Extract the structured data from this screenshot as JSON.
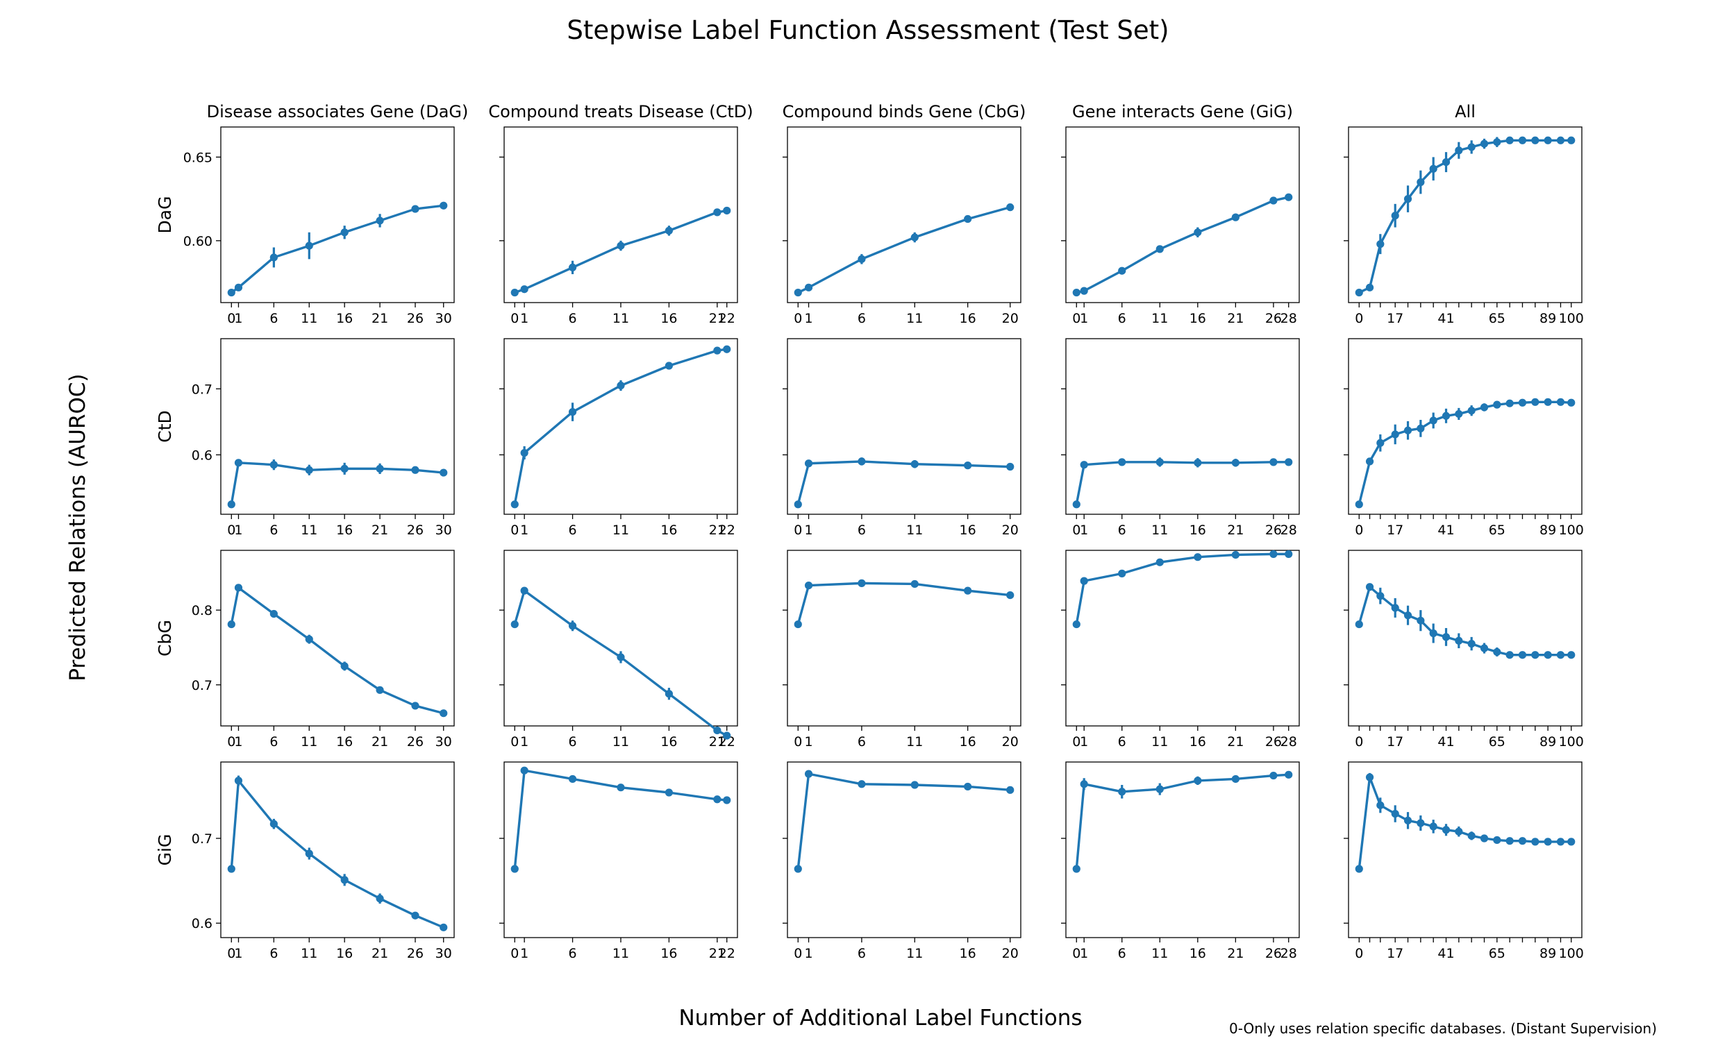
{
  "title": "Stepwise Label Function Assessment (Test Set)",
  "ylabel": "Predicted Relations (AUROC)",
  "xlabel": "Number of Additional Label Functions",
  "footnote": "0-Only uses relation specific databases. (Distant Supervision)",
  "colors": {
    "series": "#1f77b4",
    "axes": "#000000"
  },
  "chart_data": {
    "type": "line",
    "layout": "grid 4 rows x 5 columns, shared y-axis per row",
    "columns": [
      {
        "title": "Disease associates Gene (DaG)",
        "x": [
          0,
          1,
          6,
          11,
          16,
          21,
          26,
          30
        ]
      },
      {
        "title": "Compound treats Disease (CtD)",
        "x": [
          0,
          1,
          6,
          11,
          16,
          21,
          22
        ]
      },
      {
        "title": "Compound binds Gene (CbG)",
        "x": [
          0,
          1,
          6,
          11,
          16,
          20
        ]
      },
      {
        "title": "Gene interacts Gene (GiG)",
        "x": [
          0,
          1,
          6,
          11,
          16,
          21,
          26,
          28
        ]
      },
      {
        "title": "All",
        "x": [
          0,
          5,
          10,
          17,
          23,
          29,
          35,
          41,
          47,
          53,
          59,
          65,
          71,
          77,
          83,
          89,
          95,
          100
        ],
        "xticks": [
          0,
          17,
          41,
          65,
          89,
          100
        ]
      }
    ],
    "rows": [
      {
        "label": "DaG",
        "ylim": [
          0.563,
          0.668
        ],
        "yticks": [
          0.6,
          0.65
        ],
        "ytick_labels": [
          "0.60",
          "0.65"
        ],
        "values": [
          [
            0.569,
            0.572,
            0.59,
            0.597,
            0.605,
            0.612,
            0.619,
            0.621
          ],
          [
            0.569,
            0.571,
            0.584,
            0.597,
            0.606,
            0.617,
            0.618
          ],
          [
            0.569,
            0.572,
            0.589,
            0.602,
            0.613,
            0.62
          ],
          [
            0.569,
            0.57,
            0.582,
            0.595,
            0.605,
            0.614,
            0.624,
            0.626
          ],
          [
            0.569,
            0.572,
            0.598,
            0.615,
            0.625,
            0.635,
            0.643,
            0.647,
            0.654,
            0.656,
            0.658,
            0.659,
            0.66,
            0.66,
            0.66,
            0.66,
            0.66,
            0.66
          ]
        ],
        "errors": [
          [
            0.001,
            0.002,
            0.006,
            0.008,
            0.004,
            0.004,
            0.002,
            0.001
          ],
          [
            0.001,
            0.001,
            0.004,
            0.003,
            0.003,
            0.002,
            0.001
          ],
          [
            0.001,
            0.001,
            0.003,
            0.003,
            0.002,
            0.002
          ],
          [
            0.001,
            0.001,
            0.002,
            0.002,
            0.003,
            0.002,
            0.001,
            0.001
          ],
          [
            0.001,
            0.002,
            0.006,
            0.007,
            0.008,
            0.007,
            0.007,
            0.006,
            0.005,
            0.004,
            0.003,
            0.003,
            0.002,
            0.002,
            0.001,
            0.001,
            0.001,
            0.001
          ]
        ]
      },
      {
        "label": "CtD",
        "ylim": [
          0.51,
          0.776
        ],
        "yticks": [
          0.6,
          0.7
        ],
        "ytick_labels": [
          "0.6",
          "0.7"
        ],
        "values": [
          [
            0.525,
            0.588,
            0.585,
            0.577,
            0.579,
            0.579,
            0.577,
            0.573
          ],
          [
            0.525,
            0.603,
            0.665,
            0.705,
            0.735,
            0.758,
            0.76
          ],
          [
            0.525,
            0.587,
            0.59,
            0.586,
            0.584,
            0.582
          ],
          [
            0.525,
            0.585,
            0.589,
            0.589,
            0.588,
            0.588,
            0.589,
            0.589
          ],
          [
            0.525,
            0.59,
            0.618,
            0.631,
            0.637,
            0.64,
            0.652,
            0.659,
            0.662,
            0.667,
            0.672,
            0.676,
            0.678,
            0.679,
            0.68,
            0.68,
            0.68,
            0.679
          ]
        ],
        "errors": [
          [
            0.002,
            0.003,
            0.008,
            0.008,
            0.009,
            0.008,
            0.005,
            0.004
          ],
          [
            0.002,
            0.01,
            0.014,
            0.008,
            0.004,
            0.003,
            0.002
          ],
          [
            0.002,
            0.003,
            0.006,
            0.006,
            0.004,
            0.003
          ],
          [
            0.002,
            0.003,
            0.005,
            0.007,
            0.007,
            0.006,
            0.004,
            0.003
          ],
          [
            0.002,
            0.005,
            0.013,
            0.015,
            0.014,
            0.013,
            0.012,
            0.011,
            0.009,
            0.008,
            0.006,
            0.005,
            0.004,
            0.003,
            0.003,
            0.002,
            0.002,
            0.002
          ]
        ]
      },
      {
        "label": "CbG",
        "ylim": [
          0.645,
          0.88
        ],
        "yticks": [
          0.7,
          0.8
        ],
        "ytick_labels": [
          "0.7",
          "0.8"
        ],
        "values": [
          [
            0.781,
            0.83,
            0.795,
            0.761,
            0.725,
            0.693,
            0.672,
            0.662
          ],
          [
            0.781,
            0.826,
            0.779,
            0.737,
            0.688,
            0.639,
            0.632
          ],
          [
            0.781,
            0.833,
            0.836,
            0.835,
            0.826,
            0.82
          ],
          [
            0.781,
            0.839,
            0.849,
            0.864,
            0.871,
            0.874,
            0.875,
            0.875
          ],
          [
            0.781,
            0.831,
            0.819,
            0.803,
            0.793,
            0.786,
            0.769,
            0.764,
            0.759,
            0.755,
            0.749,
            0.744,
            0.74,
            0.74,
            0.74,
            0.74,
            0.74,
            0.74
          ]
        ],
        "errors": [
          [
            0.001,
            0.003,
            0.004,
            0.006,
            0.006,
            0.004,
            0.003,
            0.002
          ],
          [
            0.001,
            0.004,
            0.007,
            0.008,
            0.008,
            0.003,
            0.002
          ],
          [
            0.001,
            0.003,
            0.004,
            0.003,
            0.002,
            0.002
          ],
          [
            0.001,
            0.003,
            0.003,
            0.003,
            0.002,
            0.002,
            0.002,
            0.001
          ],
          [
            0.001,
            0.004,
            0.011,
            0.013,
            0.013,
            0.014,
            0.013,
            0.012,
            0.01,
            0.009,
            0.007,
            0.006,
            0.004,
            0.003,
            0.002,
            0.002,
            0.001,
            0.001
          ]
        ]
      },
      {
        "label": "GiG",
        "ylim": [
          0.583,
          0.79
        ],
        "yticks": [
          0.6,
          0.7
        ],
        "ytick_labels": [
          "0.6",
          "0.7"
        ],
        "values": [
          [
            0.664,
            0.768,
            0.717,
            0.682,
            0.651,
            0.629,
            0.609,
            0.595
          ],
          [
            0.664,
            0.78,
            0.77,
            0.76,
            0.754,
            0.746,
            0.745
          ],
          [
            0.664,
            0.776,
            0.764,
            0.763,
            0.761,
            0.757
          ],
          [
            0.664,
            0.764,
            0.755,
            0.758,
            0.768,
            0.77,
            0.774,
            0.775
          ],
          [
            0.664,
            0.772,
            0.739,
            0.729,
            0.721,
            0.718,
            0.714,
            0.71,
            0.708,
            0.703,
            0.7,
            0.698,
            0.697,
            0.697,
            0.696,
            0.696,
            0.696,
            0.696
          ]
        ],
        "errors": [
          [
            0.001,
            0.006,
            0.006,
            0.007,
            0.007,
            0.006,
            0.003,
            0.002
          ],
          [
            0.001,
            0.002,
            0.002,
            0.002,
            0.002,
            0.002,
            0.002
          ],
          [
            0.001,
            0.003,
            0.003,
            0.003,
            0.002,
            0.002
          ],
          [
            0.001,
            0.007,
            0.008,
            0.007,
            0.005,
            0.004,
            0.003,
            0.002
          ],
          [
            0.001,
            0.005,
            0.009,
            0.01,
            0.01,
            0.009,
            0.008,
            0.007,
            0.006,
            0.005,
            0.004,
            0.003,
            0.003,
            0.002,
            0.002,
            0.002,
            0.001,
            0.001
          ]
        ]
      }
    ]
  }
}
